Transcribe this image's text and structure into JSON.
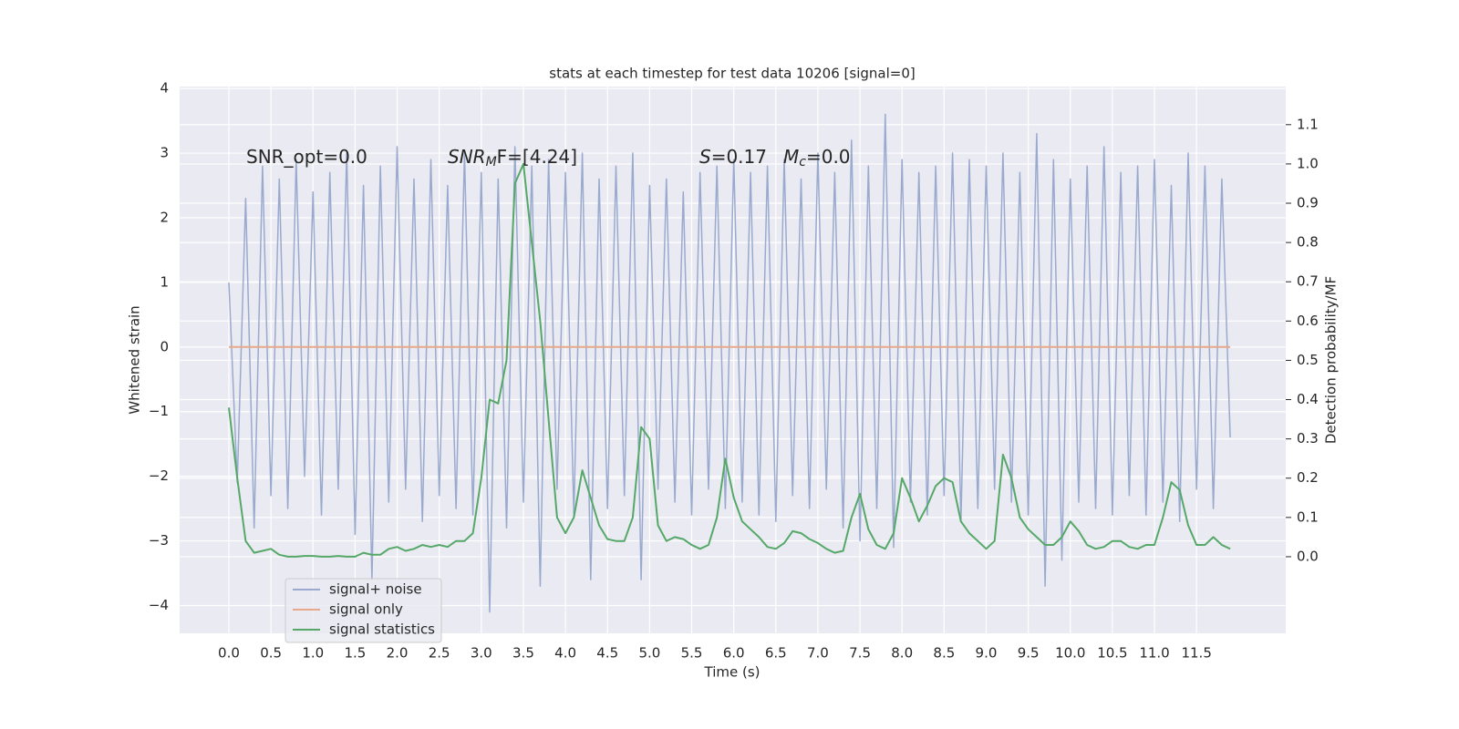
{
  "chart_data": {
    "type": "line",
    "title": "stats at each timestep for test data 10206 [signal=0]",
    "xlabel": "Time (s)",
    "ylabel": "Whitened strain",
    "y2label": "Detection probability/MF",
    "annotations": [
      {
        "base": "SNR_opt=0.0"
      },
      {
        "base": "SNR",
        "sub": "M",
        "rest": "F=[4.24]"
      },
      {
        "base": "S",
        "rest": "=0.17"
      },
      {
        "base": "M",
        "sub": "c",
        "rest": "=0.0"
      }
    ],
    "x": [
      0.0,
      0.1,
      0.2,
      0.3,
      0.4,
      0.5,
      0.6,
      0.7,
      0.8,
      0.9,
      1.0,
      1.1,
      1.2,
      1.3,
      1.4,
      1.5,
      1.6,
      1.7,
      1.8,
      1.9,
      2.0,
      2.1,
      2.2,
      2.3,
      2.4,
      2.5,
      2.6,
      2.7,
      2.8,
      2.9,
      3.0,
      3.1,
      3.2,
      3.3,
      3.4,
      3.5,
      3.6,
      3.7,
      3.8,
      3.9,
      4.0,
      4.1,
      4.2,
      4.3,
      4.4,
      4.5,
      4.6,
      4.7,
      4.8,
      4.9,
      5.0,
      5.1,
      5.2,
      5.3,
      5.4,
      5.5,
      5.6,
      5.7,
      5.8,
      5.9,
      6.0,
      6.1,
      6.2,
      6.3,
      6.4,
      6.5,
      6.6,
      6.7,
      6.8,
      6.9,
      7.0,
      7.1,
      7.2,
      7.3,
      7.4,
      7.5,
      7.6,
      7.7,
      7.8,
      7.9,
      8.0,
      8.1,
      8.2,
      8.3,
      8.4,
      8.5,
      8.6,
      8.7,
      8.8,
      8.9,
      9.0,
      9.1,
      9.2,
      9.3,
      9.4,
      9.5,
      9.6,
      9.7,
      9.8,
      9.9,
      10.0,
      10.1,
      10.2,
      10.3,
      10.4,
      10.5,
      10.6,
      10.7,
      10.8,
      10.9,
      11.0,
      11.1,
      11.2,
      11.3,
      11.4,
      11.5,
      11.6,
      11.7,
      11.8,
      11.9
    ],
    "series": [
      {
        "name": "signal+ noise",
        "color": "#9aaace",
        "values": [
          1.0,
          -2.1,
          2.3,
          -2.8,
          2.8,
          -2.3,
          2.6,
          -2.5,
          2.9,
          -2.0,
          2.4,
          -2.6,
          2.7,
          -2.2,
          3.0,
          -2.9,
          2.5,
          -3.6,
          2.8,
          -2.4,
          3.1,
          -2.2,
          2.6,
          -2.7,
          2.9,
          -2.3,
          2.5,
          -2.5,
          3.0,
          -2.6,
          2.7,
          -4.1,
          2.6,
          -2.8,
          3.1,
          -2.4,
          2.8,
          -3.7,
          2.9,
          -2.2,
          2.7,
          -2.6,
          3.0,
          -3.6,
          2.6,
          -2.5,
          2.8,
          -2.3,
          3.0,
          -3.6,
          2.5,
          -2.2,
          2.6,
          -2.4,
          2.4,
          -2.6,
          2.7,
          -2.2,
          2.8,
          -2.5,
          2.9,
          -2.4,
          2.7,
          -2.6,
          2.8,
          -2.7,
          2.9,
          -2.3,
          2.6,
          -2.5,
          3.0,
          -2.2,
          2.7,
          -2.8,
          3.2,
          -3.0,
          2.8,
          -2.5,
          3.6,
          -3.1,
          2.9,
          -2.4,
          2.7,
          -2.6,
          2.8,
          -2.3,
          3.0,
          -2.7,
          2.9,
          -2.5,
          2.8,
          -2.2,
          3.0,
          -2.4,
          2.7,
          -2.6,
          3.3,
          -3.7,
          2.9,
          -3.3,
          2.6,
          -2.4,
          2.8,
          -2.5,
          3.1,
          -2.6,
          2.7,
          -2.3,
          2.8,
          -2.6,
          2.9,
          -2.4,
          2.5,
          -2.7,
          3.0,
          -2.2,
          2.8,
          -2.5,
          2.6,
          -1.4
        ]
      },
      {
        "name": "signal only",
        "color": "#e8a98a",
        "values": [
          0,
          0,
          0,
          0,
          0,
          0,
          0,
          0,
          0,
          0,
          0,
          0,
          0,
          0,
          0,
          0,
          0,
          0,
          0,
          0,
          0,
          0,
          0,
          0,
          0,
          0,
          0,
          0,
          0,
          0,
          0,
          0,
          0,
          0,
          0,
          0,
          0,
          0,
          0,
          0,
          0,
          0,
          0,
          0,
          0,
          0,
          0,
          0,
          0,
          0,
          0,
          0,
          0,
          0,
          0,
          0,
          0,
          0,
          0,
          0,
          0,
          0,
          0,
          0,
          0,
          0,
          0,
          0,
          0,
          0,
          0,
          0,
          0,
          0,
          0,
          0,
          0,
          0,
          0,
          0,
          0,
          0,
          0,
          0,
          0,
          0,
          0,
          0,
          0,
          0,
          0,
          0,
          0,
          0,
          0,
          0,
          0,
          0,
          0,
          0,
          0,
          0,
          0,
          0,
          0,
          0,
          0,
          0,
          0,
          0,
          0,
          0,
          0,
          0,
          0,
          0,
          0,
          0,
          0,
          0
        ]
      },
      {
        "name": "signal statistics",
        "color": "#55a868",
        "axis": "y2",
        "values": [
          0.38,
          0.2,
          0.04,
          0.01,
          0.015,
          0.02,
          0.005,
          0,
          0,
          0.002,
          0.002,
          0,
          0,
          0.002,
          0,
          0,
          0.01,
          0.005,
          0.005,
          0.02,
          0.025,
          0.015,
          0.02,
          0.03,
          0.025,
          0.03,
          0.025,
          0.04,
          0.04,
          0.06,
          0.2,
          0.4,
          0.39,
          0.5,
          0.95,
          1.0,
          0.8,
          0.6,
          0.35,
          0.1,
          0.06,
          0.1,
          0.22,
          0.15,
          0.08,
          0.045,
          0.04,
          0.04,
          0.1,
          0.33,
          0.3,
          0.08,
          0.04,
          0.05,
          0.045,
          0.03,
          0.02,
          0.03,
          0.1,
          0.25,
          0.15,
          0.09,
          0.07,
          0.05,
          0.025,
          0.02,
          0.035,
          0.065,
          0.06,
          0.045,
          0.035,
          0.02,
          0.01,
          0.015,
          0.1,
          0.16,
          0.07,
          0.03,
          0.02,
          0.06,
          0.2,
          0.15,
          0.09,
          0.13,
          0.18,
          0.2,
          0.19,
          0.09,
          0.06,
          0.04,
          0.02,
          0.04,
          0.26,
          0.2,
          0.1,
          0.07,
          0.05,
          0.03,
          0.03,
          0.05,
          0.09,
          0.065,
          0.03,
          0.02,
          0.025,
          0.04,
          0.04,
          0.025,
          0.02,
          0.03,
          0.03,
          0.1,
          0.19,
          0.17,
          0.08,
          0.03,
          0.03,
          0.05,
          0.03,
          0.02
        ]
      }
    ],
    "xlim": [
      -0.585,
      12.56
    ],
    "ylim": [
      -4.43,
      4.03
    ],
    "y2lim": [
      -0.195,
      1.197
    ],
    "xticks": [
      {
        "value": 0,
        "label": "0.0"
      },
      {
        "value": 0.5,
        "label": "0.5"
      },
      {
        "value": 1,
        "label": "1.0"
      },
      {
        "value": 1.5,
        "label": "1.5"
      },
      {
        "value": 2,
        "label": "2.0"
      },
      {
        "value": 2.5,
        "label": "2.5"
      },
      {
        "value": 3,
        "label": "3.0"
      },
      {
        "value": 3.5,
        "label": "3.5"
      },
      {
        "value": 4,
        "label": "4.0"
      },
      {
        "value": 4.5,
        "label": "4.5"
      },
      {
        "value": 5,
        "label": "5.0"
      },
      {
        "value": 5.5,
        "label": "5.5"
      },
      {
        "value": 6,
        "label": "6.0"
      },
      {
        "value": 6.5,
        "label": "6.5"
      },
      {
        "value": 7,
        "label": "7.0"
      },
      {
        "value": 7.5,
        "label": "7.5"
      },
      {
        "value": 8,
        "label": "8.0"
      },
      {
        "value": 8.5,
        "label": "8.5"
      },
      {
        "value": 9,
        "label": "9.0"
      },
      {
        "value": 9.5,
        "label": "9.5"
      },
      {
        "value": 10,
        "label": "10.0"
      },
      {
        "value": 10.5,
        "label": "10.5"
      },
      {
        "value": 11,
        "label": "11.0"
      },
      {
        "value": 11.5,
        "label": "11.5"
      }
    ],
    "yticks": [
      {
        "value": -4,
        "label": "−4"
      },
      {
        "value": -3,
        "label": "−3"
      },
      {
        "value": -2,
        "label": "−2"
      },
      {
        "value": -1,
        "label": "−1"
      },
      0,
      1,
      2,
      3,
      4
    ],
    "y2ticks": [
      {
        "value": 0,
        "label": "0.0"
      },
      {
        "value": 0.1,
        "label": "0.1"
      },
      {
        "value": 0.2,
        "label": "0.2"
      },
      {
        "value": 0.3,
        "label": "0.3"
      },
      {
        "value": 0.4,
        "label": "0.4"
      },
      {
        "value": 0.5,
        "label": "0.5"
      },
      {
        "value": 0.6,
        "label": "0.6"
      },
      {
        "value": 0.7,
        "label": "0.7"
      },
      {
        "value": 0.8,
        "label": "0.8"
      },
      {
        "value": 0.9,
        "label": "0.9"
      },
      {
        "value": 1.0,
        "label": "1.0"
      },
      {
        "value": 1.1,
        "label": "1.1"
      }
    ],
    "grid": true,
    "legend": "lower left",
    "background": "#eaeaf2"
  }
}
